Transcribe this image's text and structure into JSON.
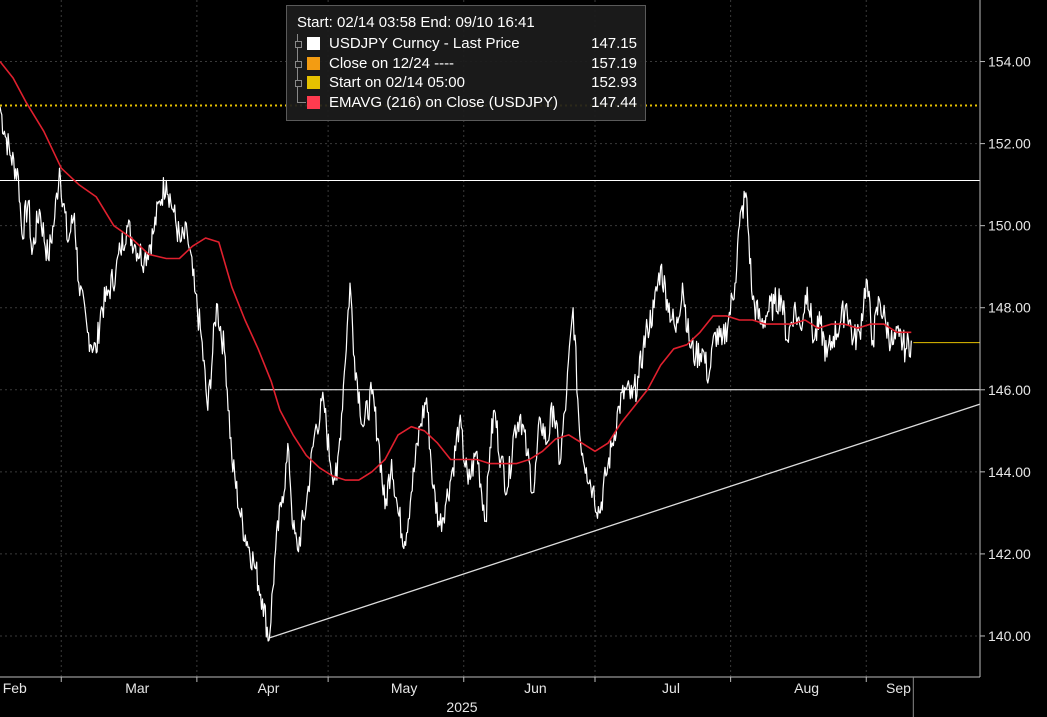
{
  "legend": {
    "period": "Start: 02/14 03:58 End: 09/10 16:41",
    "items": [
      {
        "label": "USDJPY Curncy - Last Price",
        "value": "147.15",
        "color": "#ffffff"
      },
      {
        "label": "Close on 12/24 ----",
        "value": "157.19",
        "color": "#f39c12"
      },
      {
        "label": "Start on 02/14 05:00",
        "value": "152.93",
        "color": "#e5c100"
      },
      {
        "label": "EMAVG (216)  on Close (USDJPY)",
        "value": "147.44",
        "color": "#ff3b4f"
      }
    ]
  },
  "chart_data": {
    "type": "line",
    "x_month_labels": [
      "Feb",
      "Mar",
      "Apr",
      "May",
      "Jun",
      "Jul",
      "Aug",
      "Sep"
    ],
    "x_year_label": "2025",
    "y_ticks": [
      "140.00",
      "142.00",
      "144.00",
      "146.00",
      "148.00",
      "150.00",
      "152.00",
      "154.00"
    ],
    "ylim": [
      139.0,
      155.5
    ],
    "colors": {
      "price": "#ffffff",
      "ema": "#e0202e",
      "start_line": "#e5c100",
      "last_line": "#e5c100",
      "trend": "#ffffff"
    },
    "series": [
      {
        "name": "USDJPY Curncy - Last Price",
        "t": [
          0.0,
          1.0,
          2.5,
          4.2,
          5.0,
          6.5,
          7.3,
          9.0,
          11.0,
          12.5,
          13.6,
          15.5,
          17.0,
          18.0,
          20.0,
          22.0,
          23.0,
          24.5,
          26.5,
          27.5,
          29.0,
          31.0,
          33.0,
          35.0,
          36.5,
          38.0,
          39.5,
          41.2,
          42.8,
          44.5,
          46.0,
          47.5,
          49.5,
          51.5,
          53.0,
          55.0,
          56.5,
          58.0,
          60.0,
          61.5,
          63.0,
          64.5,
          66.0,
          67.0,
          68.0,
          70.0,
          72.0,
          74.0,
          75.5,
          77.0,
          78.5,
          80.0,
          81.0,
          83.0,
          85.0,
          86.5,
          88.0,
          89.5,
          91.0,
          92.5,
          94.0,
          96.0,
          97.5,
          99.0,
          100.5,
          102.0,
          103.5,
          105.0,
          107.0,
          109.0,
          111.0,
          112.0,
          113.0,
          114.5,
          116.0,
          117.5,
          119.0,
          120.5,
          122.0,
          123.5,
          125.0,
          126.5,
          128.0,
          129.5,
          131.0,
          132.5,
          134.0,
          135.5,
          137.0,
          138.5,
          140.0,
          141.5,
          143.0,
          144.5,
          146.0,
          147.0,
          148.0,
          149.5,
          151.0,
          152.5,
          154.5,
          156.0,
          157.5,
          159.0,
          160.5,
          162.0,
          163.5,
          165.0,
          166.5,
          168.0,
          169.0,
          170.5,
          172.0,
          174.0,
          175.5,
          177.0,
          178.5,
          180.0,
          181.5,
          183.0,
          184.5,
          186.0,
          187.5,
          189.0,
          190.5,
          192.0,
          193.5,
          195.0,
          196.5,
          198.0,
          199.5,
          201.0,
          202.5,
          204.0,
          205.5,
          207.0,
          208.3
        ],
        "values": [
          152.9,
          152.3,
          151.7,
          151.2,
          149.8,
          150.6,
          149.3,
          150.4,
          149.2,
          150.2,
          151.4,
          149.6,
          150.3,
          148.6,
          147.4,
          146.9,
          147.9,
          148.3,
          148.9,
          149.4,
          150.0,
          149.5,
          149.2,
          149.8,
          150.6,
          151.1,
          150.4,
          149.6,
          149.8,
          148.4,
          147.3,
          145.5,
          148.1,
          146.8,
          144.3,
          142.9,
          142.3,
          141.8,
          140.9,
          139.9,
          142.1,
          143.4,
          144.5,
          142.6,
          142.1,
          143.2,
          145.0,
          145.7,
          144.2,
          143.8,
          146.1,
          148.6,
          146.8,
          145.1,
          145.9,
          144.8,
          143.1,
          144.3,
          143.0,
          142.3,
          143.5,
          145.1,
          145.8,
          143.6,
          142.7,
          143.3,
          144.1,
          145.2,
          143.7,
          144.5,
          142.8,
          144.6,
          145.5,
          144.3,
          143.6,
          145.0,
          145.4,
          144.4,
          143.5,
          145.3,
          144.7,
          145.6,
          144.2,
          145.9,
          148.0,
          144.9,
          144.1,
          143.6,
          143.0,
          143.9,
          144.7,
          145.6,
          146.0,
          145.8,
          146.3,
          147.0,
          147.5,
          148.0,
          149.0,
          148.2,
          147.4,
          148.6,
          147.2,
          146.8,
          147.0,
          146.3,
          147.4,
          147.1,
          147.7,
          148.6,
          150.0,
          150.8,
          148.2,
          147.6,
          147.9,
          148.1,
          148.3,
          147.2,
          148.0,
          147.5,
          148.5,
          147.2,
          147.6,
          146.8,
          147.3,
          147.6,
          148.1,
          147.2,
          147.4,
          148.7,
          147.2,
          148.2,
          147.6,
          147.1,
          147.3,
          147.0,
          147.2
        ]
      },
      {
        "name": "EMAVG (216)  on Close (USDJPY)",
        "t": [
          0.0,
          3.0,
          6.0,
          10.0,
          14.0,
          18.0,
          22.0,
          26.0,
          30.0,
          34.0,
          38.0,
          41.0,
          44.0,
          47.0,
          50.0,
          53.0,
          56.0,
          59.0,
          62.0,
          64.0,
          67.0,
          70.0,
          73.0,
          76.0,
          79.0,
          82.0,
          85.0,
          88.0,
          91.0,
          94.0,
          97.0,
          100.0,
          103.0,
          106.0,
          109.0,
          112.0,
          115.0,
          118.0,
          121.0,
          124.0,
          127.0,
          130.0,
          133.0,
          136.0,
          139.0,
          142.0,
          145.0,
          148.0,
          151.0,
          154.0,
          157.0,
          160.0,
          163.0,
          166.0,
          169.0,
          172.0,
          175.0,
          178.0,
          181.0,
          184.0,
          187.0,
          190.0,
          193.0,
          196.0,
          199.0,
          202.0,
          205.0,
          208.3
        ],
        "values": [
          154.0,
          153.6,
          153.0,
          152.3,
          151.4,
          151.0,
          150.7,
          150.0,
          149.7,
          149.3,
          149.2,
          149.2,
          149.5,
          149.7,
          149.6,
          148.5,
          147.7,
          147.0,
          146.2,
          145.5,
          144.9,
          144.4,
          144.1,
          143.9,
          143.8,
          143.8,
          144.0,
          144.3,
          144.9,
          145.1,
          145.0,
          144.7,
          144.3,
          144.3,
          144.3,
          144.2,
          144.2,
          144.2,
          144.3,
          144.5,
          144.8,
          144.9,
          144.7,
          144.5,
          144.7,
          145.2,
          145.6,
          146.0,
          146.6,
          147.0,
          147.1,
          147.4,
          147.8,
          147.8,
          147.7,
          147.7,
          147.6,
          147.6,
          147.6,
          147.7,
          147.5,
          147.6,
          147.6,
          147.5,
          147.6,
          147.6,
          147.4,
          147.4
        ]
      }
    ],
    "start_level": 152.93,
    "last_price": 147.15,
    "trendline": [
      {
        "t": 61.5,
        "v": 139.95
      },
      {
        "t": 224.0,
        "v": 145.65
      }
    ],
    "resistance": {
      "level": 151.1
    },
    "support": {
      "level": 146.0
    },
    "month_day_index": [
      2,
      30,
      60,
      91,
      121,
      152,
      183,
      204
    ]
  }
}
